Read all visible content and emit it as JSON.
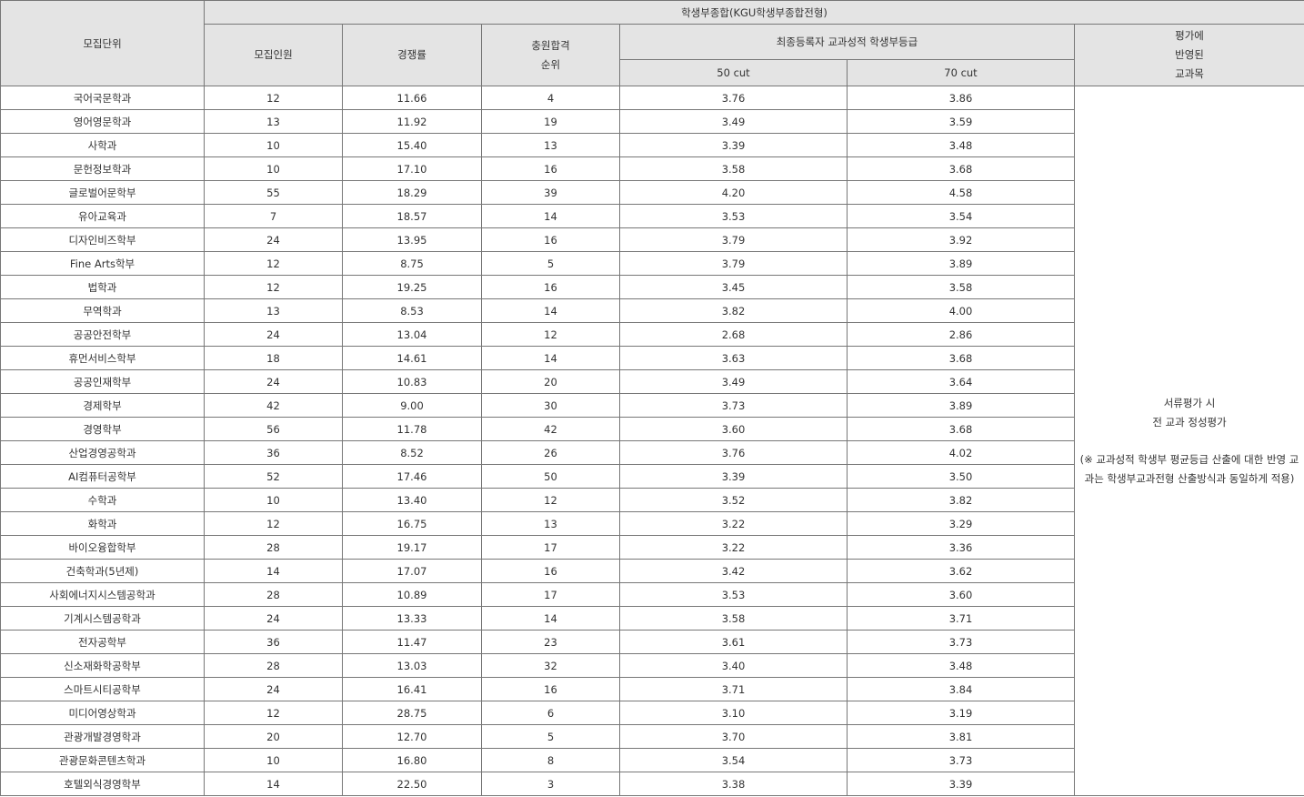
{
  "header": {
    "unit": "모집단위",
    "group_title": "학생부종합(KGU학생부종합전형)",
    "recruits": "모집인원",
    "competition": "경쟁률",
    "waitlist_rank": [
      "충원합격",
      "순위"
    ],
    "final_grade": "최종등록자 교과성적 학생부등급",
    "cut50": "50 cut",
    "cut70": "70 cut",
    "subjects": [
      "평가에",
      "반영된",
      "교과목"
    ]
  },
  "note": {
    "line1": "서류평가 시",
    "line2": "전 교과 정성평가",
    "line3": "(※ 교과성적 학생부 평균등급 산출에 대한 반영 교과는 학생부교과전형 산출방식과 동일하게 적용)"
  },
  "rows": [
    [
      "국어국문학과",
      "12",
      "11.66",
      "4",
      "3.76",
      "3.86"
    ],
    [
      "영어영문학과",
      "13",
      "11.92",
      "19",
      "3.49",
      "3.59"
    ],
    [
      "사학과",
      "10",
      "15.40",
      "13",
      "3.39",
      "3.48"
    ],
    [
      "문헌정보학과",
      "10",
      "17.10",
      "16",
      "3.58",
      "3.68"
    ],
    [
      "글로벌어문학부",
      "55",
      "18.29",
      "39",
      "4.20",
      "4.58"
    ],
    [
      "유아교육과",
      "7",
      "18.57",
      "14",
      "3.53",
      "3.54"
    ],
    [
      "디자인비즈학부",
      "24",
      "13.95",
      "16",
      "3.79",
      "3.92"
    ],
    [
      "Fine Arts학부",
      "12",
      "8.75",
      "5",
      "3.79",
      "3.89"
    ],
    [
      "법학과",
      "12",
      "19.25",
      "16",
      "3.45",
      "3.58"
    ],
    [
      "무역학과",
      "13",
      "8.53",
      "14",
      "3.82",
      "4.00"
    ],
    [
      "공공안전학부",
      "24",
      "13.04",
      "12",
      "2.68",
      "2.86"
    ],
    [
      "휴먼서비스학부",
      "18",
      "14.61",
      "14",
      "3.63",
      "3.68"
    ],
    [
      "공공인재학부",
      "24",
      "10.83",
      "20",
      "3.49",
      "3.64"
    ],
    [
      "경제학부",
      "42",
      "9.00",
      "30",
      "3.73",
      "3.89"
    ],
    [
      "경영학부",
      "56",
      "11.78",
      "42",
      "3.60",
      "3.68"
    ],
    [
      "산업경영공학과",
      "36",
      "8.52",
      "26",
      "3.76",
      "4.02"
    ],
    [
      "AI컴퓨터공학부",
      "52",
      "17.46",
      "50",
      "3.39",
      "3.50"
    ],
    [
      "수학과",
      "10",
      "13.40",
      "12",
      "3.52",
      "3.82"
    ],
    [
      "화학과",
      "12",
      "16.75",
      "13",
      "3.22",
      "3.29"
    ],
    [
      "바이오융합학부",
      "28",
      "19.17",
      "17",
      "3.22",
      "3.36"
    ],
    [
      "건축학과(5년제)",
      "14",
      "17.07",
      "16",
      "3.42",
      "3.62"
    ],
    [
      "사회에너지시스템공학과",
      "28",
      "10.89",
      "17",
      "3.53",
      "3.60"
    ],
    [
      "기계시스템공학과",
      "24",
      "13.33",
      "14",
      "3.58",
      "3.71"
    ],
    [
      "전자공학부",
      "36",
      "11.47",
      "23",
      "3.61",
      "3.73"
    ],
    [
      "신소재화학공학부",
      "28",
      "13.03",
      "32",
      "3.40",
      "3.48"
    ],
    [
      "스마트시티공학부",
      "24",
      "16.41",
      "16",
      "3.71",
      "3.84"
    ],
    [
      "미디어영상학과",
      "12",
      "28.75",
      "6",
      "3.10",
      "3.19"
    ],
    [
      "관광개발경영학과",
      "20",
      "12.70",
      "5",
      "3.70",
      "3.81"
    ],
    [
      "관광문화콘텐츠학과",
      "10",
      "16.80",
      "8",
      "3.54",
      "3.73"
    ],
    [
      "호텔외식경영학부",
      "14",
      "22.50",
      "3",
      "3.38",
      "3.39"
    ]
  ]
}
